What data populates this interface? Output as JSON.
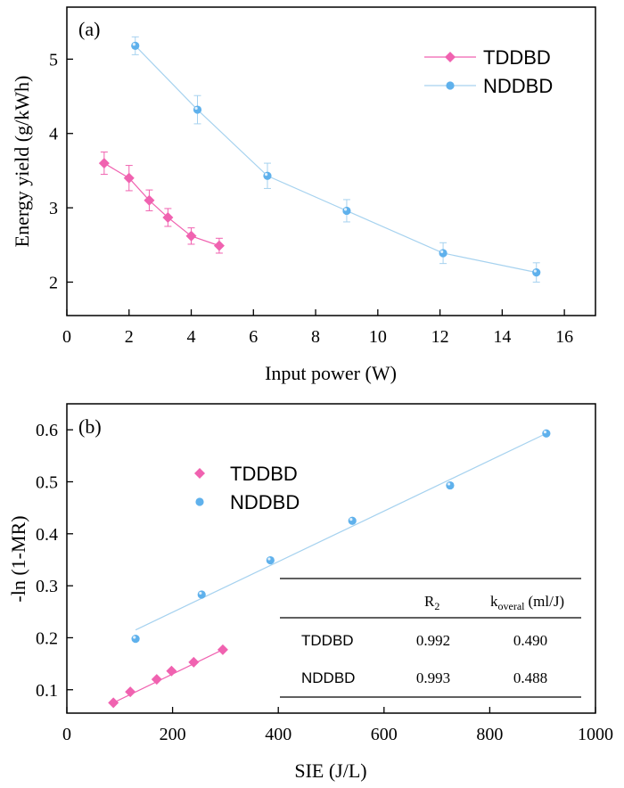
{
  "colors": {
    "tddbd": "#f062b0",
    "nddbd_line": "#a6d2ef",
    "nddbd_marker": "#5fb1ec",
    "axis": "#000000"
  },
  "chart_data": [
    {
      "type": "line",
      "panel_label": "(a)",
      "xlabel": "Input power (W)",
      "ylabel": "Energy yield (g/kWh)",
      "xlim": [
        0,
        17
      ],
      "ylim": [
        1.55,
        5.7
      ],
      "xticks": [
        0,
        2,
        4,
        6,
        8,
        10,
        12,
        14,
        16
      ],
      "yticks": [
        2,
        3,
        4,
        5
      ],
      "error_bars": true,
      "legend_position": "top-right",
      "series": [
        {
          "name": "TDDBD",
          "marker": "diamond",
          "color": "#f062b0",
          "x": [
            1.2,
            2.0,
            2.65,
            3.25,
            4.0,
            4.9
          ],
          "y": [
            3.6,
            3.4,
            3.1,
            2.87,
            2.62,
            2.49
          ],
          "err": [
            0.15,
            0.17,
            0.14,
            0.12,
            0.11,
            0.1
          ]
        },
        {
          "name": "NDDBD",
          "marker": "sphere",
          "color": "#5fb1ec",
          "x": [
            2.2,
            4.2,
            6.45,
            9.0,
            12.1,
            15.1
          ],
          "y": [
            5.18,
            4.32,
            3.43,
            2.96,
            2.39,
            2.13
          ],
          "err": [
            0.12,
            0.19,
            0.17,
            0.15,
            0.14,
            0.13
          ]
        }
      ]
    },
    {
      "type": "scatter",
      "panel_label": "(b)",
      "xlabel": "SIE (J/L)",
      "ylabel": "-ln (1-MR)",
      "xlim": [
        0,
        1000
      ],
      "ylim": [
        0.055,
        0.65
      ],
      "xticks": [
        0,
        200,
        400,
        600,
        800,
        1000
      ],
      "yticks": [
        0.1,
        0.2,
        0.3,
        0.4,
        0.5,
        0.6
      ],
      "legend_position": "top-left",
      "series": [
        {
          "name": "TDDBD",
          "marker": "diamond",
          "color": "#f062b0",
          "x": [
            88,
            120,
            170,
            198,
            240,
            295
          ],
          "y": [
            0.075,
            0.096,
            0.12,
            0.136,
            0.153,
            0.177
          ],
          "fit": [
            [
              88,
              0.075
            ],
            [
              295,
              0.177
            ]
          ]
        },
        {
          "name": "NDDBD",
          "marker": "sphere",
          "color": "#5fb1ec",
          "x": [
            130,
            255,
            385,
            540,
            725,
            907
          ],
          "y": [
            0.198,
            0.283,
            0.349,
            0.425,
            0.493,
            0.593
          ],
          "fit": [
            [
              130,
              0.215
            ],
            [
              907,
              0.593
            ]
          ]
        }
      ],
      "table": {
        "headers": [
          "",
          "R",
          "2",
          "k",
          "overal",
          "(ml/J)"
        ],
        "rows": [
          {
            "label": "TDDBD",
            "r2": "0.992",
            "k": "0.490"
          },
          {
            "label": "NDDBD",
            "r2": "0.993",
            "k": "0.488"
          }
        ]
      }
    }
  ]
}
